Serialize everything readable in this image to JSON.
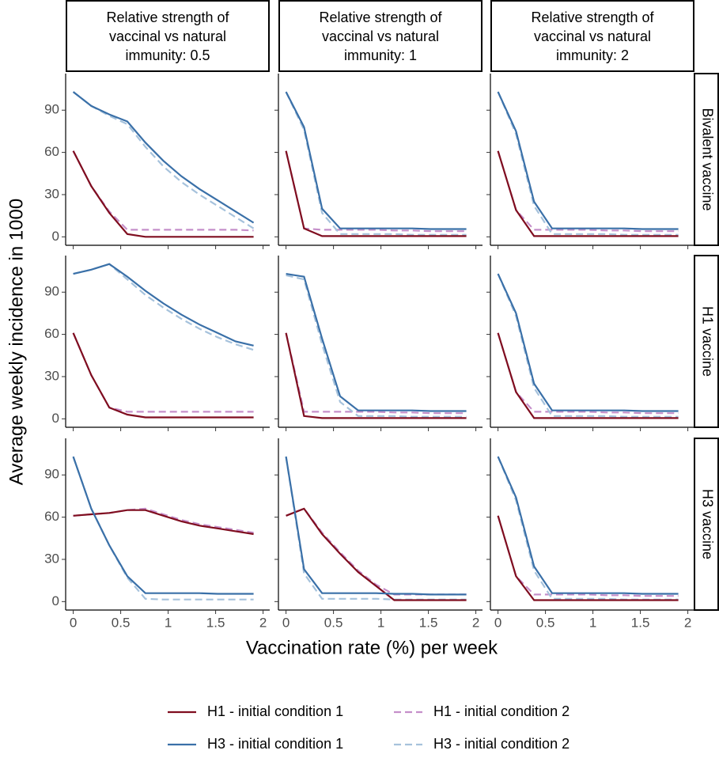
{
  "chart_data": {
    "type": "line",
    "xlabel": "Vaccination rate (%) per week",
    "ylabel": "Average weekly incidence in 1000",
    "columns": [
      [
        "Relative strength of",
        "vaccinal vs natural",
        "immunity: 0.5"
      ],
      [
        "Relative strength of",
        "vaccinal vs natural",
        "immunity: 1"
      ],
      [
        "Relative strength of",
        "vaccinal vs natural",
        "immunity: 2"
      ]
    ],
    "rows": [
      "Bivalent vaccine",
      "H1 vaccine",
      "H3 vaccine"
    ],
    "xlim": [
      -0.08,
      2.07
    ],
    "xticks": [
      0,
      0.5,
      1,
      1.5,
      2
    ],
    "ylim": [
      -6,
      116
    ],
    "yticks": [
      0,
      30,
      60,
      90
    ],
    "legend": "bottom",
    "series": [
      {
        "name": "H1 - initial condition 1",
        "color": "#7f0d1f",
        "dashed": false
      },
      {
        "name": "H1 - initial condition 2",
        "color": "#c58fca",
        "dashed": true
      },
      {
        "name": "H3 - initial condition 1",
        "color": "#3a70a8",
        "dashed": false
      },
      {
        "name": "H3 - initial condition 2",
        "color": "#a6c2dc",
        "dashed": true
      }
    ],
    "x": [
      0,
      0.19,
      0.38,
      0.57,
      0.76,
      0.95,
      1.14,
      1.33,
      1.52,
      1.71,
      1.9
    ],
    "panels": [
      {
        "series": [
          {
            "values": [
              61,
              36,
              17,
              2,
              0,
              0,
              0,
              0,
              0,
              0,
              0
            ]
          },
          {
            "values": [
              61,
              36,
              18,
              5,
              5,
              5,
              5,
              5,
              5,
              5,
              4.5
            ]
          },
          {
            "values": [
              103,
              93,
              87,
              82,
              67,
              54,
              43,
              34,
              26,
              18,
              10
            ]
          },
          {
            "values": [
              103,
              93,
              86,
              80,
              64,
              50,
              39,
              30,
              22,
              14,
              6
            ]
          }
        ]
      },
      {
        "series": [
          {
            "values": [
              61,
              6,
              0.5,
              0.5,
              0.5,
              0.5,
              0.5,
              0.5,
              0.5,
              0.5,
              0.5
            ]
          },
          {
            "values": [
              61,
              6,
              5,
              5,
              5,
              5,
              4.5,
              4.5,
              4,
              4,
              4
            ]
          },
          {
            "values": [
              103,
              78,
              20,
              6,
              6,
              6,
              6,
              6,
              5.5,
              5.5,
              5.5
            ]
          },
          {
            "values": [
              103,
              76,
              17,
              2,
              2,
              2,
              2,
              1.5,
              1.5,
              1.5,
              1.5
            ]
          }
        ]
      },
      {
        "series": [
          {
            "values": [
              61,
              19,
              0.5,
              0.5,
              0.5,
              0.5,
              0.5,
              0.5,
              0.5,
              0.5,
              0.5
            ]
          },
          {
            "values": [
              61,
              19,
              5,
              5,
              5,
              5,
              4.5,
              4.5,
              4,
              4,
              4
            ]
          },
          {
            "values": [
              103,
              75,
              25,
              6,
              6,
              6,
              6,
              6,
              5.5,
              5.5,
              5.5
            ]
          },
          {
            "values": [
              103,
              73,
              22,
              2,
              2,
              2,
              2,
              1.5,
              1.5,
              1.5,
              1.5
            ]
          }
        ]
      },
      {
        "series": [
          {
            "values": [
              61,
              31,
              8,
              3,
              1,
              1,
              1,
              1,
              1,
              1,
              1
            ]
          },
          {
            "values": [
              61,
              31,
              8,
              5,
              5,
              5,
              5,
              5,
              5,
              5,
              5
            ]
          },
          {
            "values": [
              103,
              106,
              110,
              101,
              91,
              82,
              74,
              67,
              61,
              55,
              52
            ]
          },
          {
            "values": [
              103,
              106,
              110,
              99,
              88,
              79,
              71,
              64,
              58,
              53,
              49
            ]
          }
        ]
      },
      {
        "series": [
          {
            "values": [
              61,
              2,
              0.5,
              0.5,
              0.5,
              0.5,
              0.5,
              0.5,
              0.5,
              0.5,
              0.5
            ]
          },
          {
            "values": [
              61,
              5,
              5,
              5,
              5,
              5,
              4.5,
              4.5,
              4,
              4,
              4
            ]
          },
          {
            "values": [
              103,
              101,
              57,
              16,
              6,
              6,
              6,
              6,
              5.5,
              5.5,
              5.5
            ]
          },
          {
            "values": [
              102,
              99,
              53,
              12,
              2,
              2,
              2,
              1.5,
              1.5,
              1.5,
              1.5
            ]
          }
        ]
      },
      {
        "series": [
          {
            "values": [
              61,
              19,
              0.5,
              0.5,
              0.5,
              0.5,
              0.5,
              0.5,
              0.5,
              0.5,
              0.5
            ]
          },
          {
            "values": [
              61,
              19,
              5,
              5,
              5,
              5,
              4.5,
              4.5,
              4,
              4,
              4
            ]
          },
          {
            "values": [
              103,
              75,
              25,
              6,
              6,
              6,
              6,
              6,
              5.5,
              5.5,
              5.5
            ]
          },
          {
            "values": [
              103,
              73,
              22,
              2,
              2,
              2,
              2,
              1.5,
              1.5,
              1.5,
              1.5
            ]
          }
        ]
      },
      {
        "series": [
          {
            "values": [
              61,
              62,
              63,
              65,
              65,
              61,
              57,
              54,
              52,
              50,
              48
            ]
          },
          {
            "values": [
              61,
              62,
              63,
              65,
              66,
              62,
              58,
              55,
              53,
              51,
              49
            ]
          },
          {
            "values": [
              103,
              66,
              40,
              18,
              6,
              6,
              6,
              6,
              5.5,
              5.5,
              5.5
            ]
          },
          {
            "values": [
              103,
              66,
              40,
              17,
              2,
              1.5,
              1.5,
              1.5,
              1.5,
              1.5,
              1.5
            ]
          }
        ]
      },
      {
        "series": [
          {
            "values": [
              61,
              66,
              48,
              34,
              21,
              11,
              1,
              1,
              1,
              1,
              1
            ]
          },
          {
            "values": [
              61,
              66,
              49,
              35,
              22,
              12,
              5,
              5,
              5,
              5,
              5
            ]
          },
          {
            "values": [
              103,
              23,
              6,
              6,
              6,
              6,
              5.5,
              5.5,
              5,
              5,
              5
            ]
          },
          {
            "values": [
              103,
              20,
              2,
              2,
              2,
              2,
              1.5,
              1.5,
              1.5,
              1.5,
              1.5
            ]
          }
        ]
      },
      {
        "series": [
          {
            "values": [
              61,
              18,
              1,
              1,
              1,
              1,
              1,
              1,
              1,
              1,
              1
            ]
          },
          {
            "values": [
              61,
              18,
              5,
              5,
              5,
              5,
              4.5,
              4.5,
              4,
              4,
              4
            ]
          },
          {
            "values": [
              103,
              74,
              25,
              6,
              6,
              6,
              6,
              6,
              5.5,
              5.5,
              5.5
            ]
          },
          {
            "values": [
              103,
              72,
              22,
              2,
              2,
              2,
              2,
              1.5,
              1.5,
              1.5,
              1.5
            ]
          }
        ]
      }
    ]
  }
}
